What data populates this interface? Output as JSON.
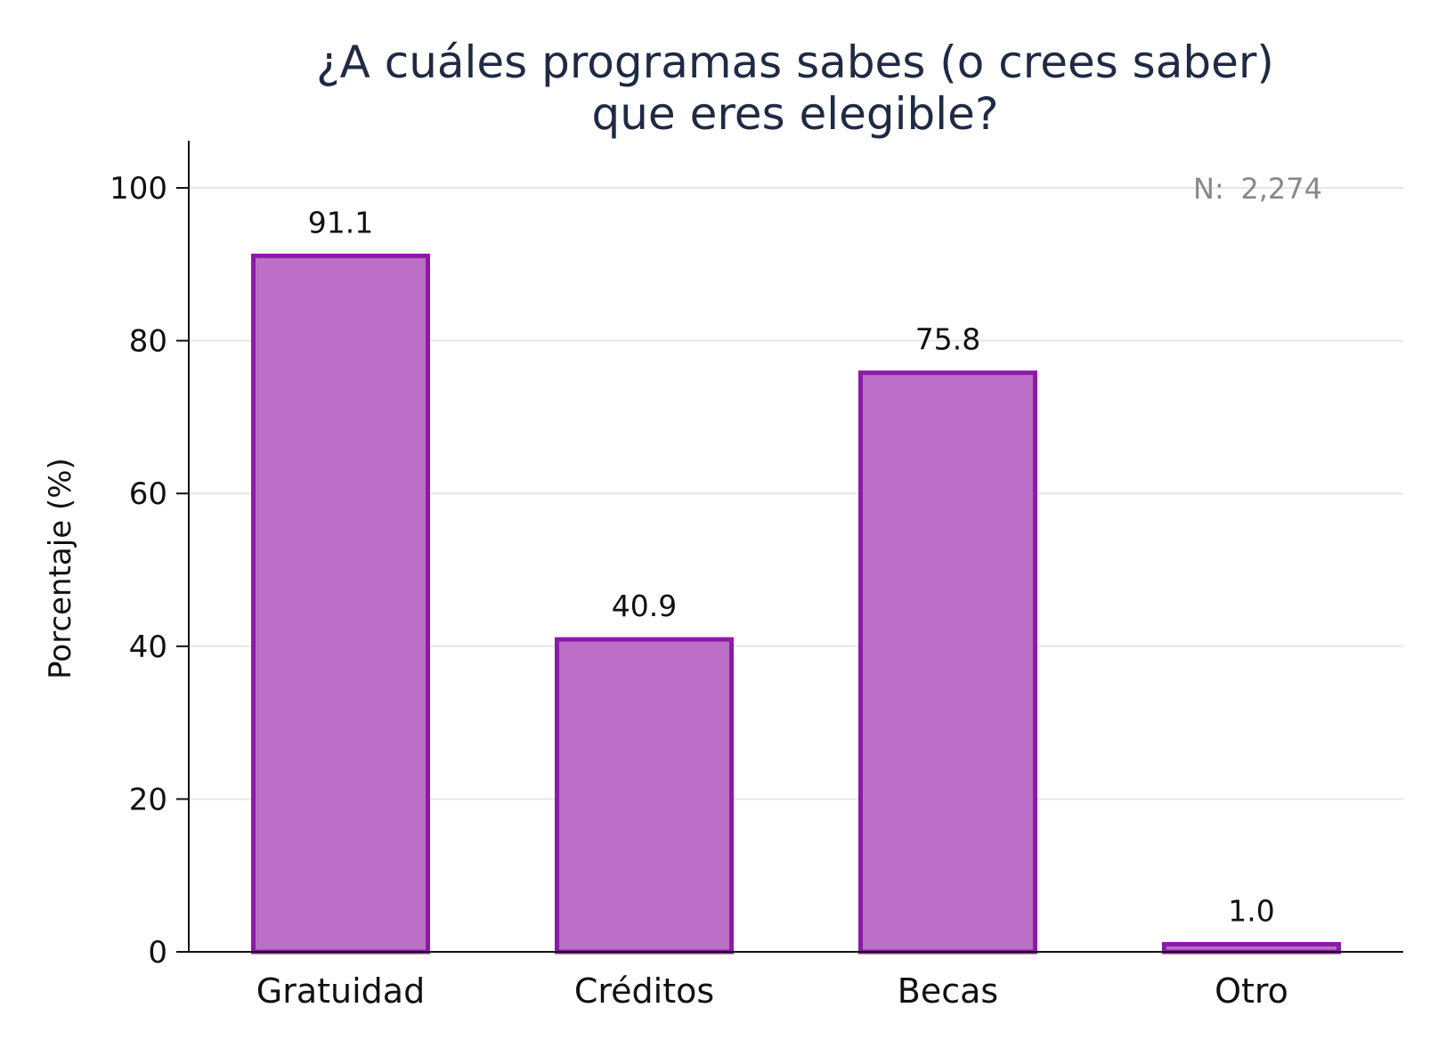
{
  "chart_data": {
    "type": "bar",
    "title_lines": [
      "¿A cuáles programas sabes (o crees saber)",
      "que eres elegible?"
    ],
    "xlabel": "",
    "ylabel": "Porcentaje (%)",
    "categories": [
      "Gratuidad",
      "Créditos",
      "Becas",
      "Otro"
    ],
    "values": [
      91.1,
      40.9,
      75.8,
      1.0
    ],
    "value_labels": [
      "91.1",
      "40.9",
      "75.8",
      "1.0"
    ],
    "ylim": [
      0,
      105
    ],
    "yticks": [
      0,
      20,
      40,
      60,
      80,
      100
    ],
    "ytick_labels": [
      "0",
      "20",
      "40",
      "60",
      "80",
      "100"
    ],
    "grid": true,
    "annotation": {
      "label": "N:",
      "value": "2,274",
      "placement": "top-right"
    },
    "colors": {
      "bar_fill": "#bb6fc7",
      "bar_edge": "#8c1aa8",
      "grid": "#e6e6e6",
      "axis": "#111111",
      "title": "#1f2a44",
      "annotation": "#888888"
    }
  }
}
